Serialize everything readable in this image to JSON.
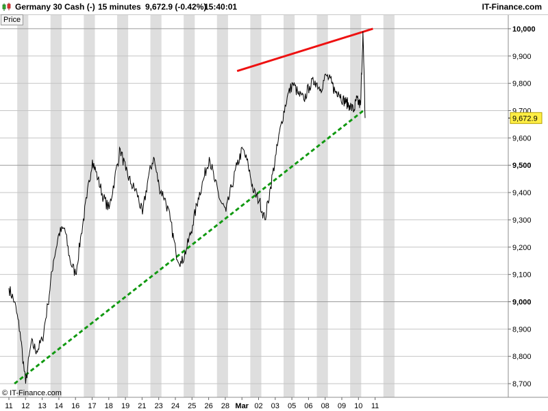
{
  "header": {
    "title": "Germany 30 Cash (-)",
    "interval": "15 minutes",
    "last": "9,672.9 (-0.42%)",
    "time": "15:40:01",
    "brand": "IT-Finance.com"
  },
  "panel_label": "Price",
  "copyright": "© IT-Finance.com",
  "chart_data": {
    "type": "line",
    "title": "Germany 30 Cash (-)",
    "ylim": [
      8650,
      10050
    ],
    "y_ticks": [
      {
        "value": 8700,
        "label": "8,700"
      },
      {
        "value": 8800,
        "label": "8,800"
      },
      {
        "value": 8900,
        "label": "8,900"
      },
      {
        "value": 9000,
        "label": "9,000"
      },
      {
        "value": 9100,
        "label": "9,100"
      },
      {
        "value": 9200,
        "label": "9,200"
      },
      {
        "value": 9300,
        "label": "9,300"
      },
      {
        "value": 9400,
        "label": "9,400"
      },
      {
        "value": 9500,
        "label": "9,500"
      },
      {
        "value": 9600,
        "label": "9,600"
      },
      {
        "value": 9700,
        "label": "9,700"
      },
      {
        "value": 9800,
        "label": "9,800"
      },
      {
        "value": 9900,
        "label": "9,900"
      },
      {
        "value": 10000,
        "label": "10,000"
      }
    ],
    "y_major_lines": [
      9000,
      9500,
      10000
    ],
    "x_labels": [
      "11",
      "12",
      "13",
      "14",
      "16",
      "17",
      "18",
      "19",
      "21",
      "23",
      "24",
      "25",
      "26",
      "28",
      "Mar",
      "02",
      "03",
      "05",
      "06",
      "08",
      "09",
      "10",
      "11"
    ],
    "x_label_bold": "Mar",
    "last_value": 9672.9,
    "last_value_label": "9,672.9",
    "series": [
      {
        "color": "#000000",
        "x": [
          0,
          0.5,
          1,
          1.5,
          2,
          2.5,
          3,
          3.5,
          4,
          4.5,
          5,
          5.5,
          6,
          6.5,
          7,
          7.5,
          8,
          8.5,
          9,
          9.5,
          10,
          10.5,
          11,
          11.5,
          12,
          12.5,
          13,
          13.5,
          14,
          14.5,
          15,
          15.5,
          16,
          16.5,
          17,
          17.5,
          18,
          18.5,
          19,
          19.5,
          20,
          20.5,
          21,
          21.5,
          22,
          22.5,
          23,
          23.5,
          24,
          24.5,
          25,
          25.5,
          26,
          26.5,
          27,
          27.5,
          28,
          28.5,
          29,
          29.3,
          29.6,
          30,
          30.3,
          30.6,
          31,
          31.2,
          31.4,
          31.6,
          31.8,
          32
        ],
        "y": [
          9050,
          9000,
          8890,
          8700,
          8850,
          8820,
          8860,
          8990,
          9150,
          9250,
          9270,
          9150,
          9100,
          9250,
          9380,
          9520,
          9450,
          9380,
          9340,
          9450,
          9560,
          9480,
          9430,
          9400,
          9320,
          9450,
          9530,
          9420,
          9380,
          9300,
          9180,
          9140,
          9200,
          9280,
          9380,
          9450,
          9530,
          9440,
          9370,
          9330,
          9420,
          9500,
          9560,
          9500,
          9400,
          9370,
          9300,
          9420,
          9540,
          9660,
          9750,
          9800,
          9760,
          9740,
          9790,
          9810,
          9780,
          9830,
          9800,
          9770,
          9770,
          9740,
          9730,
          9720,
          9700,
          9740,
          9730,
          9720,
          9990,
          9672.9
        ]
      }
    ],
    "trendlines": [
      {
        "kind": "resistance",
        "color": "#ee1111",
        "style": "solid",
        "x": [
          20.5,
          32.7
        ],
        "y": [
          9845,
          10000
        ]
      },
      {
        "kind": "support",
        "color": "#119911",
        "style": "dotted",
        "x": [
          0.5,
          32.0
        ],
        "y": [
          8700,
          9705
        ]
      }
    ]
  }
}
